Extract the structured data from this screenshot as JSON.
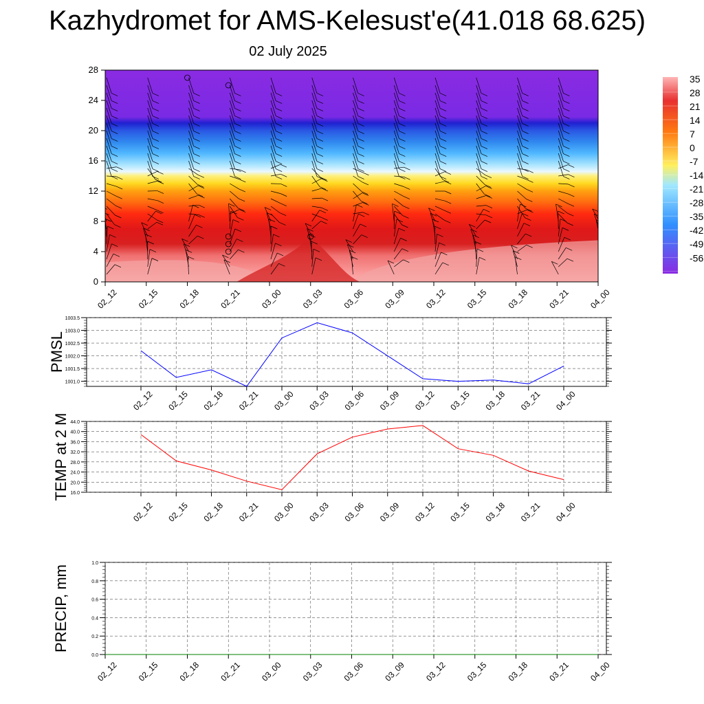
{
  "title": "Kazhydromet for AMS-Kelesust'e(41.018 68.625)",
  "subtitle": "02 July 2025",
  "times": [
    "02_12",
    "02_15",
    "02_18",
    "02_21",
    "03_00",
    "03_03",
    "03_06",
    "03_09",
    "03_12",
    "03_15",
    "03_18",
    "03_21",
    "04_00"
  ],
  "colorbar": {
    "labels": [
      "35",
      "28",
      "21",
      "14",
      "7",
      "0",
      "-7",
      "-14",
      "-21",
      "-28",
      "-35",
      "-42",
      "-49",
      "-56"
    ],
    "colors": [
      "#ffb6b6",
      "#e83030",
      "#ff7a10",
      "#fff060",
      "#a0e8ff",
      "#3090ff",
      "#8a2be2"
    ]
  },
  "chart_data": [
    {
      "type": "heatmap",
      "name": "temperature-wind cross-section",
      "x": [
        "02_12",
        "02_15",
        "02_18",
        "02_21",
        "03_00",
        "03_03",
        "03_06",
        "03_09",
        "03_12",
        "03_15",
        "03_18",
        "03_21",
        "04_00"
      ],
      "ylim": [
        0,
        28
      ],
      "yticks": [
        0,
        4,
        8,
        12,
        16,
        20,
        24,
        28
      ],
      "bands": [
        {
          "from": 0,
          "to": 5,
          "value": 35
        },
        {
          "from": 5,
          "to": 8,
          "value": 28
        },
        {
          "from": 8,
          "to": 10,
          "value": 21
        },
        {
          "from": 10,
          "to": 12.5,
          "value": 14
        },
        {
          "from": 12.5,
          "to": 14.5,
          "value": 0
        },
        {
          "from": 14.5,
          "to": 17,
          "value": -21
        },
        {
          "from": 17,
          "to": 21,
          "value": -42
        },
        {
          "from": 21,
          "to": 28,
          "value": -56
        }
      ],
      "calm_markers": [
        {
          "x": "02_18",
          "y": 27
        },
        {
          "x": "02_21",
          "y": 26
        },
        {
          "x": "02_21",
          "y": 6
        },
        {
          "x": "02_21",
          "y": 5
        },
        {
          "x": "02_21",
          "y": 4
        },
        {
          "x": "03_03",
          "y": 6
        }
      ]
    },
    {
      "type": "line",
      "ylabel": "PMSL",
      "x": [
        "02_12",
        "02_15",
        "02_18",
        "02_21",
        "03_00",
        "03_03",
        "03_06",
        "03_09",
        "03_12",
        "03_15",
        "03_18",
        "03_21",
        "04_00"
      ],
      "values": [
        1002.2,
        1001.15,
        1001.45,
        1000.8,
        1002.7,
        1003.3,
        1002.9,
        1002.0,
        1001.1,
        1001.0,
        1001.05,
        1000.9,
        1001.6
      ],
      "ylim": [
        1000.8,
        1003.5
      ],
      "yticks": [
        "1001.0",
        "1001.5",
        "1002.0",
        "1002.5",
        "1003.0",
        "1003.5"
      ],
      "color": "#0000ff",
      "grid": true
    },
    {
      "type": "line",
      "ylabel": "TEMP at 2 M",
      "x": [
        "02_12",
        "02_15",
        "02_18",
        "02_21",
        "03_00",
        "03_03",
        "03_06",
        "03_09",
        "03_12",
        "03_15",
        "03_18",
        "03_21",
        "04_00"
      ],
      "values": [
        38.8,
        28.4,
        24.8,
        20.4,
        17.0,
        31.2,
        37.8,
        41.0,
        42.4,
        33.2,
        30.6,
        24.4,
        21.0
      ],
      "ylim": [
        16,
        44
      ],
      "yticks": [
        "16.0",
        "20.0",
        "24.0",
        "28.0",
        "32.0",
        "36.0",
        "40.0",
        "44.0"
      ],
      "color": "#ff0000",
      "grid": true
    },
    {
      "type": "line",
      "ylabel": "PRECIP, mm",
      "x": [
        "02_12",
        "02_15",
        "02_18",
        "02_21",
        "03_00",
        "03_03",
        "03_06",
        "03_09",
        "03_12",
        "03_15",
        "03_18",
        "03_21",
        "04_00"
      ],
      "values": [
        0,
        0,
        0,
        0,
        0,
        0,
        0,
        0,
        0,
        0,
        0,
        0,
        0
      ],
      "ylim": [
        0,
        1
      ],
      "yticks": [
        "0.0",
        "0.2",
        "0.4",
        "0.6",
        "0.8",
        "1.0"
      ],
      "color": "#008000",
      "grid": true
    }
  ]
}
